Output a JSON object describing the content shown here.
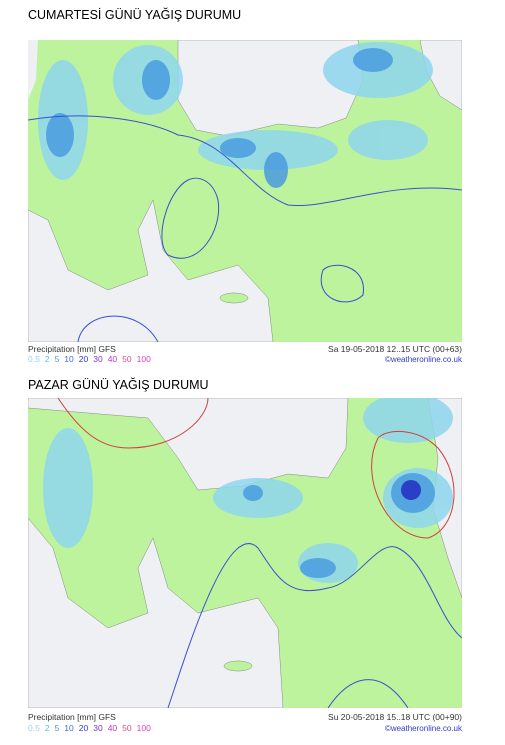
{
  "sections": [
    {
      "heading": "CUMARTESİ GÜNÜ YAĞIŞ DURUMU",
      "map": {
        "caption_left": "Precipitation [mm] GFS",
        "caption_right": "Sa 19-05-2018 12..15 UTC (00+63)",
        "credit": "©weatheronline.co.uk"
      }
    },
    {
      "heading": "PAZAR GÜNÜ YAĞIŞ DURUMU",
      "map": {
        "caption_left": "Precipitation [mm] GFS",
        "caption_right": "Su 20-05-2018 15..18 UTC (00+90)",
        "credit": "©weatheronline.co.uk"
      }
    }
  ],
  "legend": [
    {
      "label": "0.5",
      "color": "#8fd6ee"
    },
    {
      "label": "2",
      "color": "#55c0e8"
    },
    {
      "label": "5",
      "color": "#4a9be0"
    },
    {
      "label": "10",
      "color": "#3a6fe0"
    },
    {
      "label": "20",
      "color": "#2a3fc8"
    },
    {
      "label": "30",
      "color": "#7a3ac8"
    },
    {
      "label": "40",
      "color": "#b03ad0"
    },
    {
      "label": "50",
      "color": "#e04a8a"
    },
    {
      "label": "100",
      "color": "#e03ad0"
    }
  ]
}
